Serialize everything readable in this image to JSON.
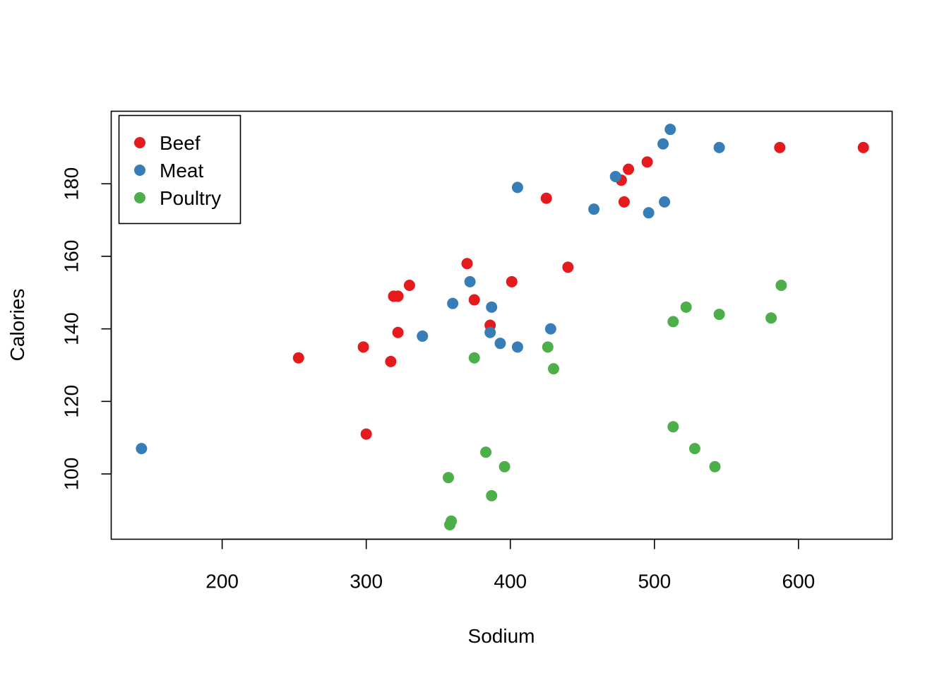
{
  "chart_data": {
    "type": "scatter",
    "title": "",
    "xlabel": "Sodium",
    "ylabel": "Calories",
    "xlim": [
      123,
      665
    ],
    "ylim": [
      82,
      200
    ],
    "x_ticks": [
      200,
      300,
      400,
      500,
      600
    ],
    "y_ticks": [
      100,
      120,
      140,
      160,
      180
    ],
    "x_tick_labels": [
      "200",
      "300",
      "400",
      "500",
      "600"
    ],
    "y_tick_labels": [
      "100",
      "120",
      "140",
      "160",
      "180"
    ],
    "grid": false,
    "legend_position": "top-left",
    "series": [
      {
        "name": "Beef",
        "color": "#E41A1C",
        "points": [
          [
            253,
            132
          ],
          [
            298,
            135
          ],
          [
            300,
            111
          ],
          [
            317,
            131
          ],
          [
            319,
            149
          ],
          [
            322,
            149
          ],
          [
            322,
            139
          ],
          [
            330,
            152
          ],
          [
            370,
            158
          ],
          [
            375,
            148
          ],
          [
            386,
            141
          ],
          [
            401,
            153
          ],
          [
            425,
            176
          ],
          [
            440,
            157
          ],
          [
            477,
            181
          ],
          [
            479,
            175
          ],
          [
            482,
            184
          ],
          [
            495,
            186
          ],
          [
            587,
            190
          ],
          [
            645,
            190
          ]
        ]
      },
      {
        "name": "Meat",
        "color": "#377EB8",
        "points": [
          [
            144,
            107
          ],
          [
            339,
            138
          ],
          [
            360,
            147
          ],
          [
            372,
            153
          ],
          [
            386,
            139
          ],
          [
            387,
            146
          ],
          [
            393,
            136
          ],
          [
            405,
            179
          ],
          [
            405,
            135
          ],
          [
            428,
            140
          ],
          [
            458,
            173
          ],
          [
            473,
            182
          ],
          [
            496,
            172
          ],
          [
            506,
            191
          ],
          [
            507,
            175
          ],
          [
            511,
            195
          ],
          [
            545,
            190
          ]
        ]
      },
      {
        "name": "Poultry",
        "color": "#4DAF4A",
        "points": [
          [
            357,
            99
          ],
          [
            358,
            86
          ],
          [
            359,
            87
          ],
          [
            375,
            132
          ],
          [
            383,
            106
          ],
          [
            387,
            94
          ],
          [
            396,
            102
          ],
          [
            426,
            135
          ],
          [
            430,
            129
          ],
          [
            513,
            142
          ],
          [
            513,
            113
          ],
          [
            522,
            146
          ],
          [
            528,
            107
          ],
          [
            542,
            102
          ],
          [
            545,
            144
          ],
          [
            581,
            143
          ],
          [
            588,
            152
          ]
        ]
      }
    ]
  }
}
